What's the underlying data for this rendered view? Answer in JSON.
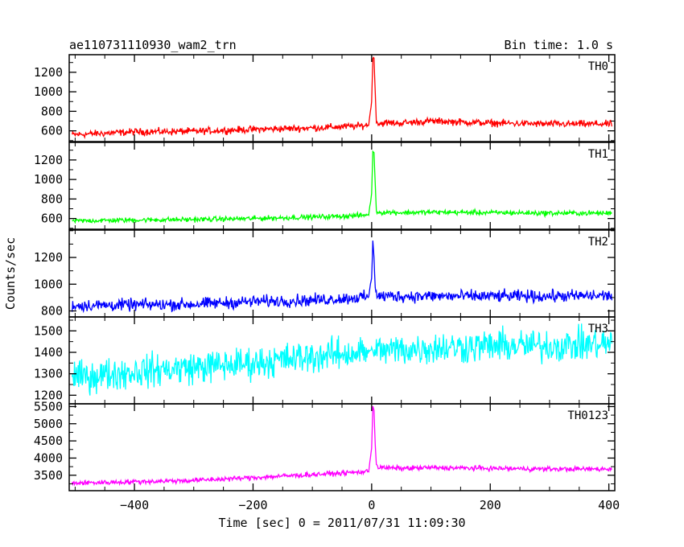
{
  "header": {
    "left_title": "ae110731110930_wam2_trn",
    "right_title": "Bin time: 1.0 s"
  },
  "chart_data": {
    "type": "line",
    "title": "ae110731110930_wam2_trn",
    "bin_time": "Bin time: 1.0 s",
    "xlabel": "Time [sec] 0 = 2011/07/31 11:09:30",
    "ylabel": "Counts/sec",
    "xlim": [
      -510,
      410
    ],
    "x_ticks": [
      -400,
      -200,
      0,
      200,
      400
    ],
    "x_tick_labels": [
      "−400",
      "−200",
      "0",
      "200",
      "400"
    ],
    "grid": false,
    "legend": "none",
    "peak_time": 3,
    "panels": [
      {
        "name": "TH0",
        "color": "#ff0000",
        "ylim": [
          490,
          1380
        ],
        "y_ticks": [
          600,
          800,
          1000,
          1200
        ],
        "x": [
          -505,
          -400,
          -300,
          -200,
          -100,
          -20,
          -5,
          0,
          2,
          4,
          6,
          8,
          12,
          20,
          50,
          100,
          200,
          300,
          405
        ],
        "y": [
          560,
          590,
          595,
          615,
          630,
          650,
          660,
          900,
          1350,
          1340,
          1000,
          700,
          670,
          680,
          680,
          700,
          680,
          670,
          670
        ],
        "noise": 35
      },
      {
        "name": "TH1",
        "color": "#00ff00",
        "ylim": [
          490,
          1380
        ],
        "y_ticks": [
          600,
          800,
          1000,
          1200
        ],
        "x": [
          -505,
          -400,
          -300,
          -200,
          -100,
          -20,
          -5,
          0,
          2,
          4,
          6,
          8,
          12,
          20,
          50,
          100,
          200,
          300,
          405
        ],
        "y": [
          575,
          585,
          590,
          600,
          615,
          630,
          640,
          850,
          1290,
          1280,
          950,
          680,
          660,
          665,
          660,
          665,
          660,
          655,
          655
        ],
        "noise": 25
      },
      {
        "name": "TH2",
        "color": "#0000ff",
        "ylim": [
          755,
          1405
        ],
        "y_ticks": [
          800,
          1000,
          1200
        ],
        "x": [
          -505,
          -400,
          -300,
          -200,
          -100,
          -20,
          -5,
          0,
          2,
          4,
          6,
          8,
          12,
          20,
          50,
          100,
          200,
          300,
          405
        ],
        "y": [
          840,
          845,
          850,
          870,
          880,
          900,
          905,
          1050,
          1330,
          1200,
          980,
          920,
          910,
          910,
          910,
          910,
          910,
          910,
          915
        ],
        "noise": 45
      },
      {
        "name": "TH3",
        "color": "#00ffff",
        "ylim": [
          1160,
          1565
        ],
        "y_ticks": [
          1200,
          1300,
          1400,
          1500
        ],
        "x": [
          -505,
          -400,
          -300,
          -200,
          -100,
          0,
          100,
          200,
          300,
          405
        ],
        "y": [
          1280,
          1310,
          1330,
          1350,
          1380,
          1405,
          1420,
          1430,
          1430,
          1440
        ],
        "noise": 75
      },
      {
        "name": "TH0123",
        "color": "#ff00ff",
        "ylim": [
          3050,
          5580
        ],
        "y_ticks": [
          3500,
          4000,
          4500,
          5000,
          5500
        ],
        "x": [
          -505,
          -400,
          -300,
          -200,
          -100,
          -20,
          -5,
          0,
          2,
          4,
          6,
          8,
          12,
          20,
          50,
          100,
          200,
          300,
          405
        ],
        "y": [
          3270,
          3310,
          3350,
          3430,
          3520,
          3590,
          3610,
          4300,
          5500,
          5400,
          4400,
          3800,
          3720,
          3720,
          3700,
          3720,
          3700,
          3680,
          3680
        ],
        "noise": 70
      }
    ]
  }
}
